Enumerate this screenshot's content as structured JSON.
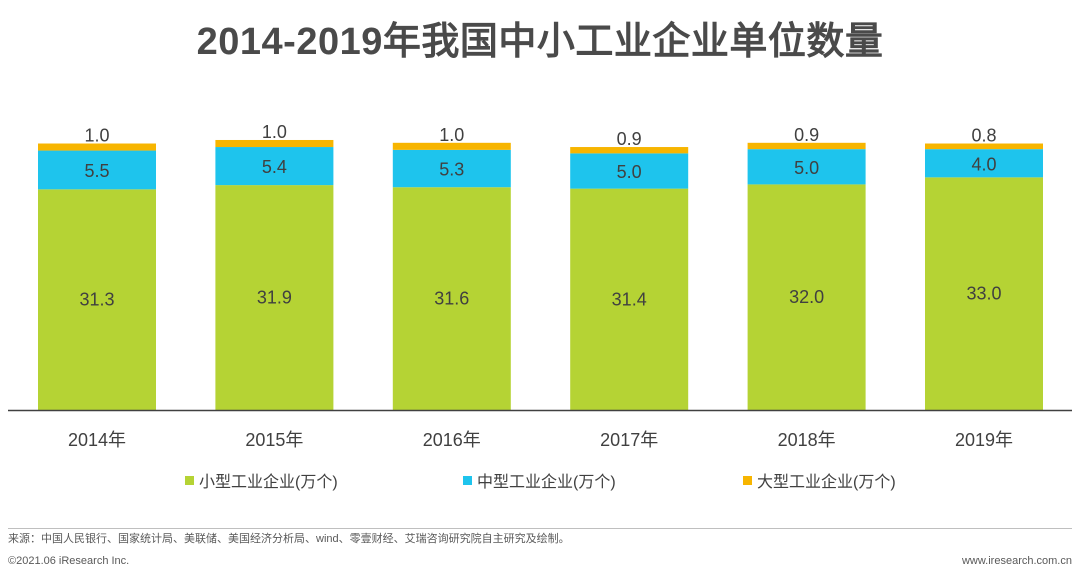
{
  "chart_data": {
    "type": "bar",
    "stacked": true,
    "title": "2014-2019年我国中小工业企业单位数量",
    "categories": [
      "2014年",
      "2015年",
      "2016年",
      "2017年",
      "2018年",
      "2019年"
    ],
    "series": [
      {
        "name": "小型工业企业(万个)",
        "color": "#b5d334",
        "values": [
          31.3,
          31.9,
          31.6,
          31.4,
          32.0,
          33.0
        ],
        "labels": [
          "31.3",
          "31.9",
          "31.6",
          "31.4",
          "32.0",
          "33.0"
        ]
      },
      {
        "name": "中型工业企业(万个)",
        "color": "#1ec4ed",
        "values": [
          5.5,
          5.4,
          5.3,
          5.0,
          5.0,
          4.0
        ],
        "labels": [
          "5.5",
          "5.4",
          "5.3",
          "5.0",
          "5.0",
          "4.0"
        ]
      },
      {
        "name": "大型工业企业(万个)",
        "color": "#f7b500",
        "values": [
          1.0,
          1.0,
          1.0,
          0.9,
          0.9,
          0.8
        ],
        "labels": [
          "1.0",
          "1.0",
          "1.0",
          "0.9",
          "0.9",
          "0.8"
        ]
      }
    ],
    "ylim": [
      0,
      38
    ],
    "legend": "bottom",
    "grid": false
  },
  "footer": {
    "source": "来源：中国人民银行、国家统计局、美联储、美国经济分析局、wind、零壹财经、艾瑞咨询研究院自主研究及绘制。",
    "copyright": "©2021.06 iResearch Inc.",
    "website": "www.iresearch.com.cn"
  }
}
